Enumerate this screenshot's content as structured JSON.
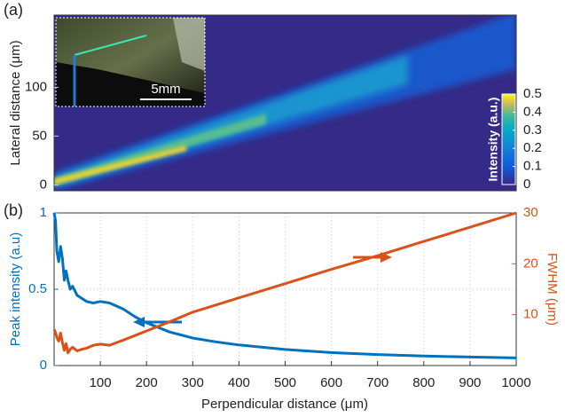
{
  "chart_data": [
    {
      "type": "heatmap",
      "panel_label": "(a)",
      "ylabel": "Lateral distance (μm)",
      "xlim": [
        0,
        1000
      ],
      "ylim": [
        -6,
        174
      ],
      "yticks": [
        0,
        50,
        100
      ],
      "colorbar": {
        "label": "Intensity (a.u.)",
        "lim": [
          0,
          0.5
        ],
        "ticks": [
          0,
          0.1,
          0.2,
          0.3,
          0.4,
          0.5
        ]
      },
      "inset_scale_label": "5mm"
    },
    {
      "type": "line",
      "panel_label": "(b)",
      "xlabel": "Perpendicular distance (μm)",
      "ylabel": "Peak intensity (a.u)",
      "y2label": "FWHM (μm)",
      "xlim": [
        0,
        1000
      ],
      "xticks": [
        100,
        200,
        300,
        400,
        500,
        600,
        700,
        800,
        900,
        1000
      ],
      "ylim": [
        0,
        1
      ],
      "yticks": [
        0,
        0.5,
        1
      ],
      "y2lim": [
        0,
        30
      ],
      "y2ticks": [
        10,
        20,
        30
      ],
      "grid": true,
      "x": [
        0,
        3,
        6,
        10,
        14,
        18,
        22,
        26,
        30,
        35,
        40,
        50,
        60,
        70,
        85,
        100,
        120,
        150,
        175,
        200,
        250,
        300,
        350,
        400,
        500,
        600,
        700,
        800,
        900,
        1000
      ],
      "series": [
        {
          "color": "#0072BD",
          "values": [
            1,
            0.95,
            0.75,
            0.68,
            0.78,
            0.7,
            0.56,
            0.62,
            0.56,
            0.5,
            0.52,
            0.46,
            0.44,
            0.42,
            0.41,
            0.42,
            0.41,
            0.37,
            0.32,
            0.28,
            0.22,
            0.18,
            0.155,
            0.135,
            0.105,
            0.085,
            0.072,
            0.062,
            0.056,
            0.05
          ]
        },
        {
          "color": "#D95319",
          "axis": "y2",
          "values": [
            7.1,
            6.5,
            5.5,
            4.8,
            6.4,
            4.5,
            3,
            4.3,
            2.5,
            3.2,
            3.6,
            2.9,
            3.2,
            3.4,
            4,
            4.2,
            4,
            5,
            5.9,
            6.8,
            8.6,
            10.5,
            11.9,
            13.3,
            16.1,
            18.9,
            21.6,
            24.4,
            27.2,
            30
          ]
        }
      ]
    }
  ]
}
